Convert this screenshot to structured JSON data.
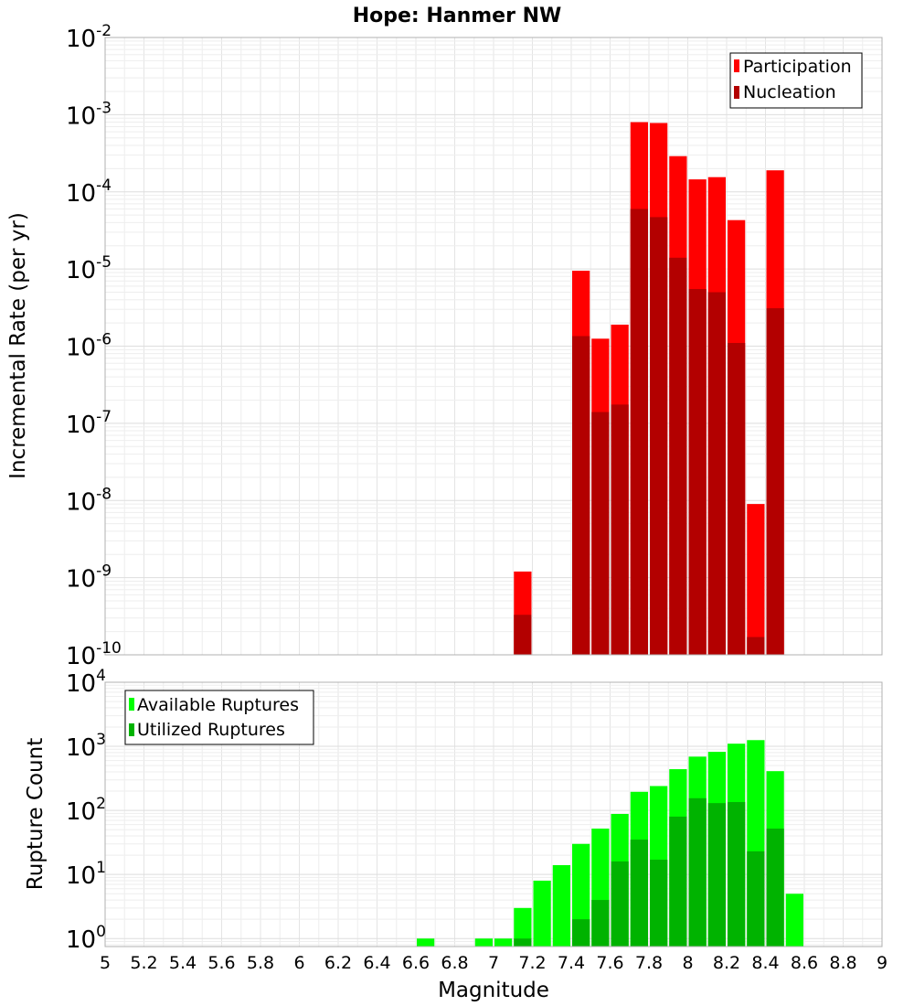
{
  "chart_data": [
    {
      "type": "bar",
      "title": "Hope: Hanmer NW",
      "xlabel": "",
      "ylabel": "Incremental Rate (per yr)",
      "yscale": "log",
      "ylim": [
        1e-10,
        0.01
      ],
      "xlim": [
        5,
        9
      ],
      "y_ticks": [
        {
          "base": "10",
          "exp": "-10",
          "value": 1e-10
        },
        {
          "base": "10",
          "exp": "-9",
          "value": 1e-09
        },
        {
          "base": "10",
          "exp": "-8",
          "value": 1e-08
        },
        {
          "base": "10",
          "exp": "-7",
          "value": 1e-07
        },
        {
          "base": "10",
          "exp": "-6",
          "value": 1e-06
        },
        {
          "base": "10",
          "exp": "-5",
          "value": 1e-05
        },
        {
          "base": "10",
          "exp": "-4",
          "value": 0.0001
        },
        {
          "base": "10",
          "exp": "-3",
          "value": 0.001
        },
        {
          "base": "10",
          "exp": "-2",
          "value": 0.01
        }
      ],
      "legend": {
        "position": "top-right"
      },
      "grid": true,
      "series": [
        {
          "name": "Participation",
          "color": "#ff0000",
          "x": [
            7.15,
            7.45,
            7.55,
            7.65,
            7.75,
            7.85,
            7.95,
            8.05,
            8.15,
            8.25,
            8.35,
            8.45
          ],
          "values": [
            1.2e-09,
            9.5e-06,
            1.25e-06,
            1.9e-06,
            0.0008,
            0.00078,
            0.00029,
            0.000145,
            0.000155,
            4.3e-05,
            9e-09,
            0.00019
          ]
        },
        {
          "name": "Nucleation",
          "color": "#b30000",
          "x": [
            7.15,
            7.45,
            7.55,
            7.65,
            7.75,
            7.85,
            7.95,
            8.05,
            8.15,
            8.25,
            8.35,
            8.45
          ],
          "values": [
            3.3e-10,
            1.35e-06,
            1.4e-07,
            1.75e-07,
            6e-05,
            4.7e-05,
            1.4e-05,
            5.5e-06,
            5e-06,
            1.1e-06,
            1.7e-10,
            3.1e-06
          ]
        }
      ]
    },
    {
      "type": "bar",
      "title": "",
      "xlabel": "Magnitude",
      "ylabel": "Rupture Count",
      "yscale": "log",
      "ylim": [
        0.75,
        10000
      ],
      "xlim": [
        5,
        9
      ],
      "y_ticks": [
        {
          "base": "10",
          "exp": "0",
          "value": 1
        },
        {
          "base": "10",
          "exp": "1",
          "value": 10
        },
        {
          "base": "10",
          "exp": "2",
          "value": 100
        },
        {
          "base": "10",
          "exp": "3",
          "value": 1000
        },
        {
          "base": "10",
          "exp": "4",
          "value": 10000
        }
      ],
      "x_ticks": [
        "5",
        "5.2",
        "5.4",
        "5.6",
        "5.8",
        "6",
        "6.2",
        "6.4",
        "6.6",
        "6.8",
        "7",
        "7.2",
        "7.4",
        "7.6",
        "7.8",
        "8",
        "8.2",
        "8.4",
        "8.6",
        "8.8",
        "9"
      ],
      "legend": {
        "position": "top-left"
      },
      "grid": true,
      "series": [
        {
          "name": "Available Ruptures",
          "color": "#00ff00",
          "x": [
            6.65,
            6.95,
            7.05,
            7.15,
            7.25,
            7.35,
            7.45,
            7.55,
            7.65,
            7.75,
            7.85,
            7.95,
            8.05,
            8.15,
            8.25,
            8.35,
            8.45,
            8.55
          ],
          "values": [
            1,
            1,
            1,
            3,
            8,
            14,
            30,
            52,
            88,
            195,
            240,
            440,
            690,
            820,
            1100,
            1250,
            410,
            5
          ]
        },
        {
          "name": "Utilized Ruptures",
          "color": "#00b300",
          "x": [
            7.15,
            7.45,
            7.55,
            7.65,
            7.75,
            7.85,
            7.95,
            8.05,
            8.15,
            8.25,
            8.35,
            8.45
          ],
          "values": [
            1,
            2,
            4,
            16,
            35,
            17,
            80,
            155,
            130,
            135,
            23,
            52
          ]
        }
      ]
    }
  ]
}
